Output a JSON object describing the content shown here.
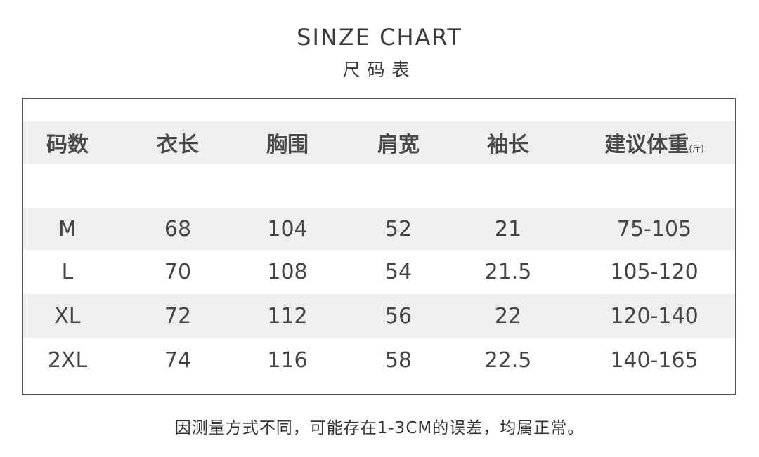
{
  "title": "SINZE CHART",
  "subtitle": "尺码表",
  "table": {
    "headers": [
      "码数",
      "衣长",
      "胸围",
      "肩宽",
      "袖长",
      "建议体重"
    ],
    "weight_unit": "(斤)",
    "rows": [
      [
        "M",
        "68",
        "104",
        "52",
        "21",
        "75-105"
      ],
      [
        "L",
        "70",
        "108",
        "54",
        "21.5",
        "105-120"
      ],
      [
        "XL",
        "72",
        "112",
        "56",
        "22",
        "120-140"
      ],
      [
        "2XL",
        "74",
        "116",
        "58",
        "22.5",
        "140-165"
      ]
    ]
  },
  "note": "因测量方式不同，可能存在1-3CM的误差，均属正常。",
  "colors": {
    "band": "#efefef",
    "text": "#444444"
  }
}
